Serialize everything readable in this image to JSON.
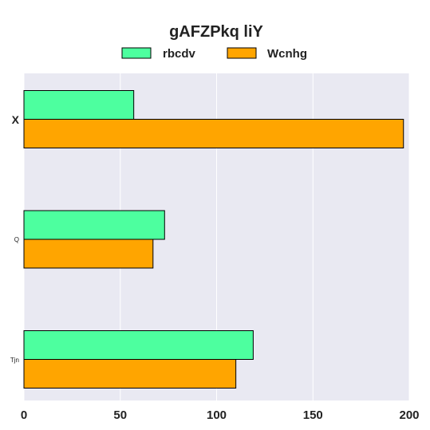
{
  "chart_data": {
    "type": "bar",
    "orientation": "horizontal",
    "title": "gAFZPkq liY",
    "categories": [
      "X",
      "Q",
      "Tjn"
    ],
    "series": [
      {
        "name": "rbcdv",
        "values": [
          57,
          73,
          119
        ],
        "color": "#4dff9f"
      },
      {
        "name": "Wcnhg",
        "values": [
          197,
          67,
          110
        ],
        "color": "#ffa500"
      }
    ],
    "xlim": [
      0,
      200
    ],
    "xticks": [
      "0",
      "50",
      "100",
      "150",
      "200"
    ],
    "grid": true,
    "legend_position": "top-center",
    "background_color": "#e9e9f2"
  }
}
